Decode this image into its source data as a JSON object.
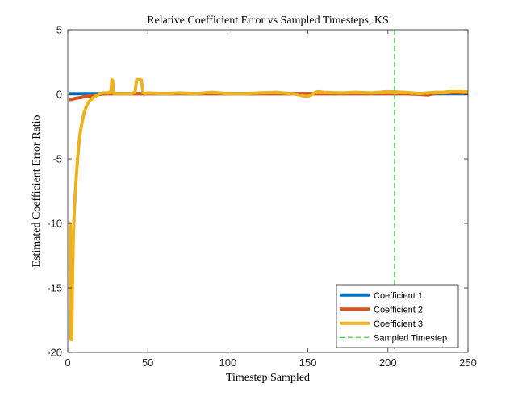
{
  "chart_data": {
    "type": "line",
    "title": "Relative Coefficient Error vs Sampled Timesteps, KS",
    "xlabel": "Timestep Sampled",
    "ylabel": "Estimated Coefficient Error Ratio",
    "xlim": [
      0,
      250
    ],
    "ylim": [
      -20,
      5
    ],
    "xticks": [
      0,
      50,
      100,
      150,
      200,
      250
    ],
    "yticks": [
      5,
      0,
      -5,
      -10,
      -15,
      -20
    ],
    "grid": false,
    "legend_placement": "bottom-right",
    "series": [
      {
        "name": "Coefficient 1",
        "color": "#0072BD",
        "x": [
          1,
          2,
          5,
          10,
          15,
          20,
          30,
          40,
          50,
          60,
          80,
          100,
          120,
          140,
          150,
          160,
          180,
          200,
          220,
          240,
          250
        ],
        "y": [
          0.05,
          0.05,
          0.05,
          0.05,
          0.05,
          0.05,
          0.05,
          0.05,
          0.05,
          0.05,
          0.05,
          0.05,
          0.05,
          0.05,
          0.05,
          0.05,
          0.05,
          0.05,
          0.05,
          0.05,
          0.05
        ]
      },
      {
        "name": "Coefficient 2",
        "color": "#D95319",
        "x": [
          1,
          2,
          5,
          8,
          12,
          16,
          20,
          25,
          30,
          40,
          50,
          60,
          80,
          100,
          120,
          140,
          145,
          150,
          155,
          160,
          180,
          200,
          210,
          220,
          225,
          230,
          240,
          250
        ],
        "y": [
          -0.4,
          -0.4,
          -0.3,
          -0.25,
          -0.15,
          -0.1,
          0.0,
          0.05,
          0.05,
          0.05,
          0.05,
          0.05,
          0.05,
          0.05,
          0.05,
          0.05,
          0.05,
          0.05,
          0.05,
          0.05,
          0.05,
          0.05,
          0.05,
          0.0,
          -0.05,
          0.1,
          0.15,
          0.15
        ]
      },
      {
        "name": "Coefficient 3",
        "color": "#EDB120",
        "x": [
          1,
          1.5,
          2,
          2.5,
          3,
          3.5,
          4,
          5,
          6,
          7,
          8,
          10,
          12,
          14,
          16,
          18,
          20,
          22,
          25,
          27,
          27.5,
          28,
          28.5,
          29,
          32,
          35,
          40,
          42,
          43,
          44,
          45,
          46,
          47,
          48,
          50,
          60,
          70,
          80,
          90,
          100,
          110,
          120,
          130,
          140,
          145,
          148,
          150,
          152,
          154,
          156,
          160,
          170,
          180,
          190,
          200,
          210,
          220,
          225,
          230,
          235,
          240,
          245,
          250
        ],
        "y": [
          -10,
          -10,
          -19,
          -19,
          -14,
          -11,
          -9.2,
          -7,
          -5.2,
          -3.8,
          -2.8,
          -1.5,
          -0.8,
          -0.45,
          -0.25,
          -0.1,
          0.05,
          0.1,
          0.1,
          0.2,
          1.1,
          1.1,
          0.2,
          0.05,
          0.05,
          0.05,
          0.05,
          0.15,
          1.1,
          1.15,
          1.15,
          1.1,
          0.15,
          0.05,
          0.1,
          0.05,
          0.1,
          0.05,
          0.15,
          0.05,
          0.05,
          0.1,
          0.15,
          0.05,
          -0.05,
          -0.15,
          -0.15,
          -0.05,
          0.1,
          0.2,
          0.15,
          0.1,
          0.15,
          0.1,
          0.2,
          0.15,
          0.05,
          0.1,
          0.15,
          0.15,
          0.25,
          0.25,
          0.2
        ]
      }
    ],
    "reference_lines": [
      {
        "name": "Sampled Timestep",
        "orientation": "vertical",
        "x": 204,
        "color": "#33DD33",
        "style": "dashed"
      }
    ]
  }
}
